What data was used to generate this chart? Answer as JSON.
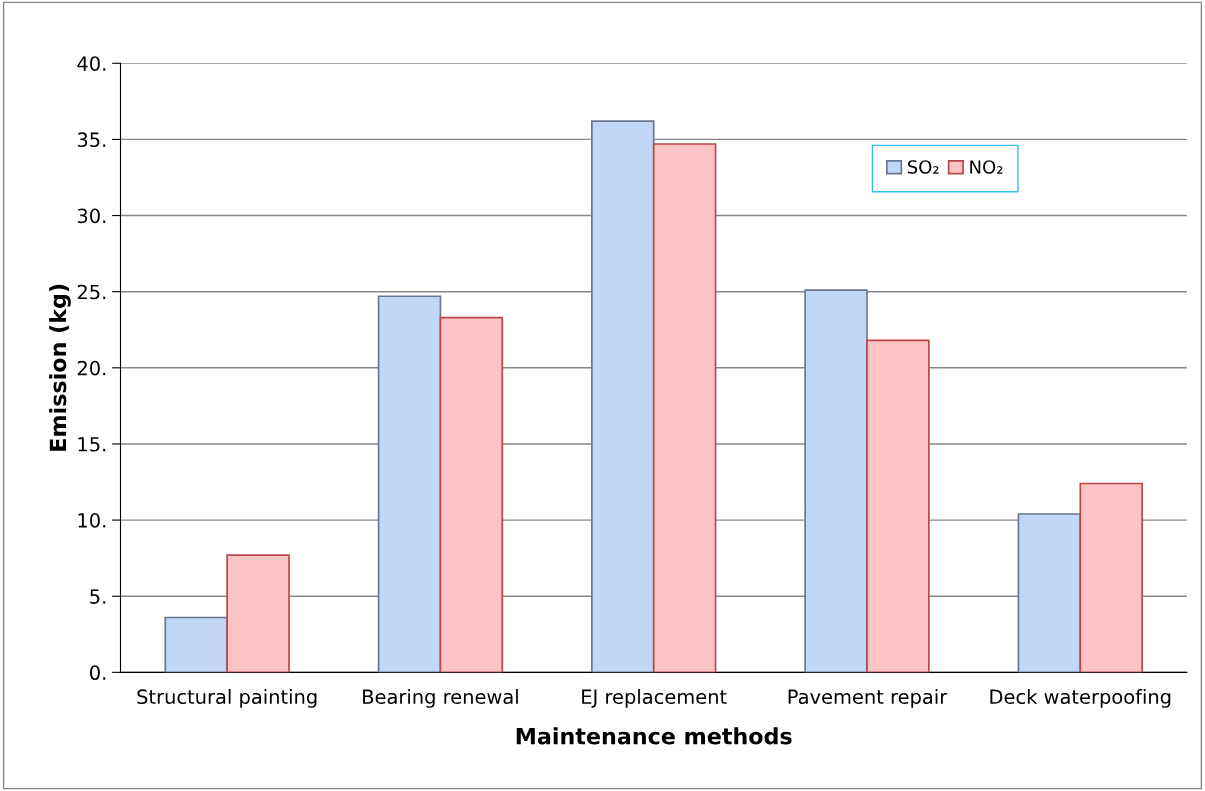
{
  "chart_data": {
    "type": "bar",
    "xlabel": "Maintenance methods",
    "ylabel": "Emission (kg)",
    "categories": [
      "Structural painting",
      "Bearing renewal",
      "EJ replacement",
      "Pavement repair",
      "Deck waterpoofing"
    ],
    "series": [
      {
        "name": "SO₂",
        "color": "#c2d6f8",
        "values": [
          3.6,
          24.7,
          36.2,
          25.1,
          10.4
        ]
      },
      {
        "name": "NO₂",
        "color": "#fcc4c4",
        "values": [
          7.7,
          23.3,
          34.7,
          21.8,
          12.4
        ]
      }
    ],
    "ylim": [
      0,
      40
    ],
    "yticks": [
      {
        "value": 0,
        "label": "0."
      },
      {
        "value": 5,
        "label": "5."
      },
      {
        "value": 10,
        "label": "10."
      },
      {
        "value": 15,
        "label": "15."
      },
      {
        "value": 20,
        "label": "20."
      },
      {
        "value": 25,
        "label": "25."
      },
      {
        "value": 30,
        "label": "30."
      },
      {
        "value": 35,
        "label": "35."
      },
      {
        "value": 40,
        "label": "40."
      }
    ],
    "grid": "y",
    "legend": "top right"
  }
}
